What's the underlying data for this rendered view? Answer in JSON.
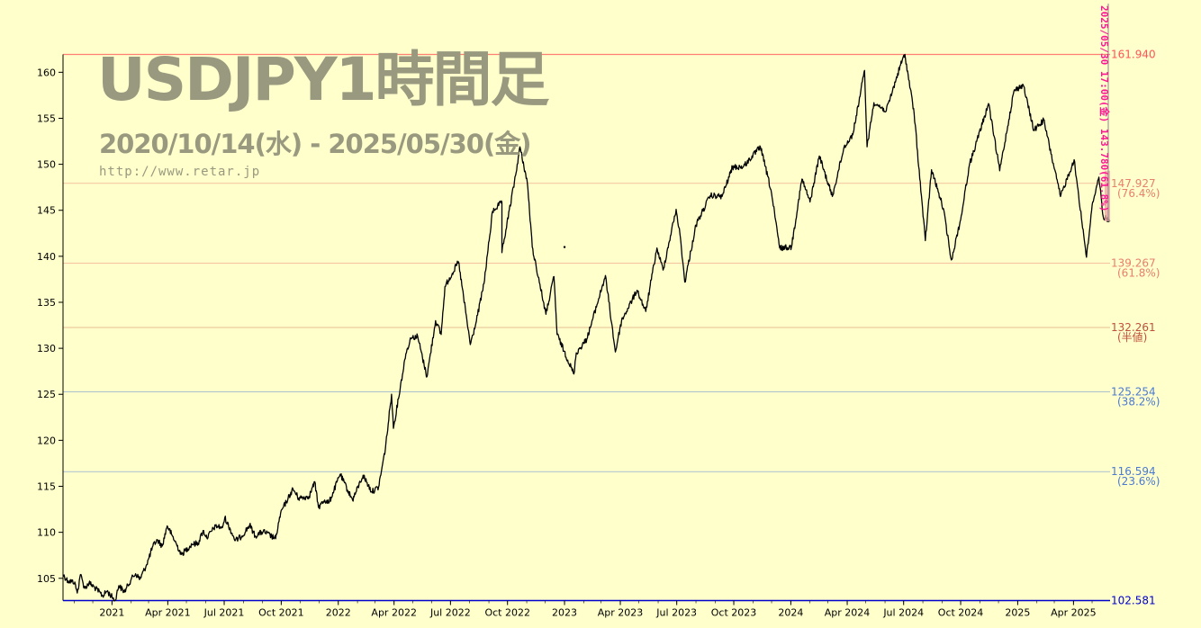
{
  "header": {
    "title": "USDJPY1時間足",
    "subtitle": "2020/10/14(水) - 2025/05/30(金)",
    "url": "http://www.retar.jp"
  },
  "colors": {
    "background": "#ffffcc",
    "price_line": "#000000",
    "high_level": "#ff5555",
    "fib_warm": "#e8806a",
    "fib_mid": "#c0503a",
    "fib_cool": "#4a7ad0",
    "low_level": "#0000cc",
    "vertical_marker": "#ff1493"
  },
  "chart_data": {
    "type": "line",
    "title": "USDJPY1時間足",
    "xlabel": "",
    "ylabel": "",
    "ylim": [
      102.581,
      161.94
    ],
    "xlim": [
      "2020-10-14",
      "2025-05-30"
    ],
    "grid": false,
    "y_ticks": [
      "105",
      "110",
      "115",
      "120",
      "125",
      "130",
      "135",
      "140",
      "145",
      "150",
      "155",
      "160"
    ],
    "x_ticks": [
      {
        "date": "2021-01-01",
        "label": "2021"
      },
      {
        "date": "2021-04-01",
        "label": "Apr 2021"
      },
      {
        "date": "2021-07-01",
        "label": "Jul 2021"
      },
      {
        "date": "2021-10-01",
        "label": "Oct 2021"
      },
      {
        "date": "2022-01-01",
        "label": "2022"
      },
      {
        "date": "2022-04-01",
        "label": "Apr 2022"
      },
      {
        "date": "2022-07-01",
        "label": "Jul 2022"
      },
      {
        "date": "2022-10-01",
        "label": "Oct 2022"
      },
      {
        "date": "2023-01-01",
        "label": "2023"
      },
      {
        "date": "2023-04-01",
        "label": "Apr 2023"
      },
      {
        "date": "2023-07-01",
        "label": "Jul 2023"
      },
      {
        "date": "2023-10-01",
        "label": "Oct 2023"
      },
      {
        "date": "2024-01-01",
        "label": "2024"
      },
      {
        "date": "2024-04-01",
        "label": "Apr 2024"
      },
      {
        "date": "2024-07-01",
        "label": "Jul 2024"
      },
      {
        "date": "2024-10-01",
        "label": "Oct 2024"
      },
      {
        "date": "2025-01-01",
        "label": "2025"
      },
      {
        "date": "2025-04-01",
        "label": "Apr 2025"
      }
    ],
    "levels": [
      {
        "value": 161.94,
        "label": "161.940",
        "sublabel": "",
        "kind": "high"
      },
      {
        "value": 147.927,
        "label": "147.927",
        "sublabel": "(76.4%)",
        "kind": "warm"
      },
      {
        "value": 139.267,
        "label": "139.267",
        "sublabel": "(61.8%)",
        "kind": "warm"
      },
      {
        "value": 132.261,
        "label": "132.261",
        "sublabel": "(半値)",
        "kind": "mid"
      },
      {
        "value": 125.254,
        "label": "125.254",
        "sublabel": "(38.2%)",
        "kind": "cool"
      },
      {
        "value": 116.594,
        "label": "116.594",
        "sublabel": "(23.6%)",
        "kind": "cool"
      },
      {
        "value": 102.581,
        "label": "102.581",
        "sublabel": "",
        "kind": "low"
      }
    ],
    "series": [
      {
        "points": [
          [
            "2020-10-14",
            105.4
          ],
          [
            "2020-10-22",
            104.7
          ],
          [
            "2020-11-02",
            104.6
          ],
          [
            "2020-11-06",
            103.4
          ],
          [
            "2020-11-11",
            105.4
          ],
          [
            "2020-11-18",
            103.9
          ],
          [
            "2020-11-25",
            104.5
          ],
          [
            "2020-12-04",
            104.0
          ],
          [
            "2020-12-17",
            103.1
          ],
          [
            "2020-12-24",
            103.6
          ],
          [
            "2021-01-06",
            102.6
          ],
          [
            "2021-01-12",
            104.2
          ],
          [
            "2021-01-21",
            103.5
          ],
          [
            "2021-02-01",
            104.9
          ],
          [
            "2021-02-08",
            105.5
          ],
          [
            "2021-02-15",
            104.9
          ],
          [
            "2021-02-26",
            106.5
          ],
          [
            "2021-03-08",
            108.5
          ],
          [
            "2021-03-15",
            109.2
          ],
          [
            "2021-03-23",
            108.5
          ],
          [
            "2021-03-31",
            110.7
          ],
          [
            "2021-04-07",
            109.8
          ],
          [
            "2021-04-23",
            107.6
          ],
          [
            "2021-05-10",
            108.7
          ],
          [
            "2021-05-20",
            108.8
          ],
          [
            "2021-05-28",
            110.2
          ],
          [
            "2021-06-03",
            109.4
          ],
          [
            "2021-06-17",
            110.7
          ],
          [
            "2021-06-28",
            110.5
          ],
          [
            "2021-07-02",
            111.6
          ],
          [
            "2021-07-19",
            109.1
          ],
          [
            "2021-07-30",
            109.6
          ],
          [
            "2021-08-11",
            110.8
          ],
          [
            "2021-08-20",
            109.6
          ],
          [
            "2021-09-02",
            110.1
          ],
          [
            "2021-09-22",
            109.3
          ],
          [
            "2021-09-30",
            112.1
          ],
          [
            "2021-10-12",
            113.7
          ],
          [
            "2021-10-20",
            114.7
          ],
          [
            "2021-10-29",
            113.7
          ],
          [
            "2021-11-15",
            113.9
          ],
          [
            "2021-11-24",
            115.5
          ],
          [
            "2021-11-30",
            112.7
          ],
          [
            "2021-12-10",
            113.5
          ],
          [
            "2021-12-17",
            113.2
          ],
          [
            "2022-01-04",
            116.3
          ],
          [
            "2022-01-24",
            113.5
          ],
          [
            "2022-02-10",
            116.2
          ],
          [
            "2022-02-24",
            114.4
          ],
          [
            "2022-03-07",
            114.9
          ],
          [
            "2022-03-18",
            119.1
          ],
          [
            "2022-03-28",
            125.0
          ],
          [
            "2022-03-31",
            121.3
          ],
          [
            "2022-04-20",
            129.4
          ],
          [
            "2022-04-28",
            131.1
          ],
          [
            "2022-05-09",
            131.3
          ],
          [
            "2022-05-24",
            126.9
          ],
          [
            "2022-06-07",
            133.0
          ],
          [
            "2022-06-16",
            131.5
          ],
          [
            "2022-06-22",
            136.7
          ],
          [
            "2022-07-14",
            139.4
          ],
          [
            "2022-08-02",
            130.4
          ],
          [
            "2022-08-10",
            132.4
          ],
          [
            "2022-08-24",
            137.0
          ],
          [
            "2022-09-07",
            144.9
          ],
          [
            "2022-09-22",
            145.9
          ],
          [
            "2022-09-22",
            140.4
          ],
          [
            "2022-10-14",
            148.8
          ],
          [
            "2022-10-21",
            151.9
          ],
          [
            "2022-11-02",
            148.0
          ],
          [
            "2022-11-10",
            141.0
          ],
          [
            "2022-11-16",
            139.0
          ],
          [
            "2022-12-02",
            133.7
          ],
          [
            "2022-12-15",
            137.8
          ],
          [
            "2022-12-20",
            131.5
          ],
          [
            "2023-01-16",
            127.2
          ],
          [
            "2023-01-20",
            129.5
          ],
          [
            "2023-02-06",
            131.0
          ],
          [
            "2023-03-08",
            137.9
          ],
          [
            "2023-03-24",
            129.6
          ],
          [
            "2023-04-03",
            133.0
          ],
          [
            "2023-04-28",
            136.3
          ],
          [
            "2023-05-12",
            134.0
          ],
          [
            "2023-05-30",
            140.9
          ],
          [
            "2023-06-09",
            138.5
          ],
          [
            "2023-06-30",
            145.1
          ],
          [
            "2023-07-07",
            142.0
          ],
          [
            "2023-07-14",
            137.2
          ],
          [
            "2023-08-01",
            143.4
          ],
          [
            "2023-08-24",
            146.6
          ],
          [
            "2023-09-12",
            146.5
          ],
          [
            "2023-09-29",
            149.7
          ],
          [
            "2023-10-16",
            149.7
          ],
          [
            "2023-11-13",
            151.9
          ],
          [
            "2023-11-30",
            147.2
          ],
          [
            "2023-12-14",
            140.9
          ],
          [
            "2024-01-02",
            141.0
          ],
          [
            "2024-01-19",
            148.4
          ],
          [
            "2024-02-01",
            145.9
          ],
          [
            "2024-02-16",
            150.9
          ],
          [
            "2024-03-08",
            146.5
          ],
          [
            "2024-03-27",
            151.9
          ],
          [
            "2024-04-10",
            153.2
          ],
          [
            "2024-04-29",
            160.2
          ],
          [
            "2024-05-03",
            151.9
          ],
          [
            "2024-05-14",
            156.7
          ],
          [
            "2024-06-03",
            155.8
          ],
          [
            "2024-06-26",
            160.8
          ],
          [
            "2024-07-03",
            161.94
          ],
          [
            "2024-07-18",
            155.5
          ],
          [
            "2024-08-05",
            141.7
          ],
          [
            "2024-08-15",
            149.4
          ],
          [
            "2024-09-03",
            145.2
          ],
          [
            "2024-09-16",
            139.6
          ],
          [
            "2024-10-01",
            144.0
          ],
          [
            "2024-10-15",
            149.9
          ],
          [
            "2024-11-15",
            156.6
          ],
          [
            "2024-12-03",
            149.3
          ],
          [
            "2024-12-26",
            158.0
          ],
          [
            "2025-01-10",
            158.6
          ],
          [
            "2025-01-27",
            153.7
          ],
          [
            "2025-02-12",
            154.8
          ],
          [
            "2025-03-11",
            146.5
          ],
          [
            "2025-04-02",
            150.5
          ],
          [
            "2025-04-22",
            139.9
          ],
          [
            "2025-05-02",
            145.9
          ],
          [
            "2025-05-12",
            148.6
          ],
          [
            "2025-05-19",
            144.3
          ],
          [
            "2025-05-30",
            143.8
          ]
        ]
      }
    ],
    "vertical_marker_text": "2025/05/30 17:00(金) 143.780(61.8%)"
  }
}
